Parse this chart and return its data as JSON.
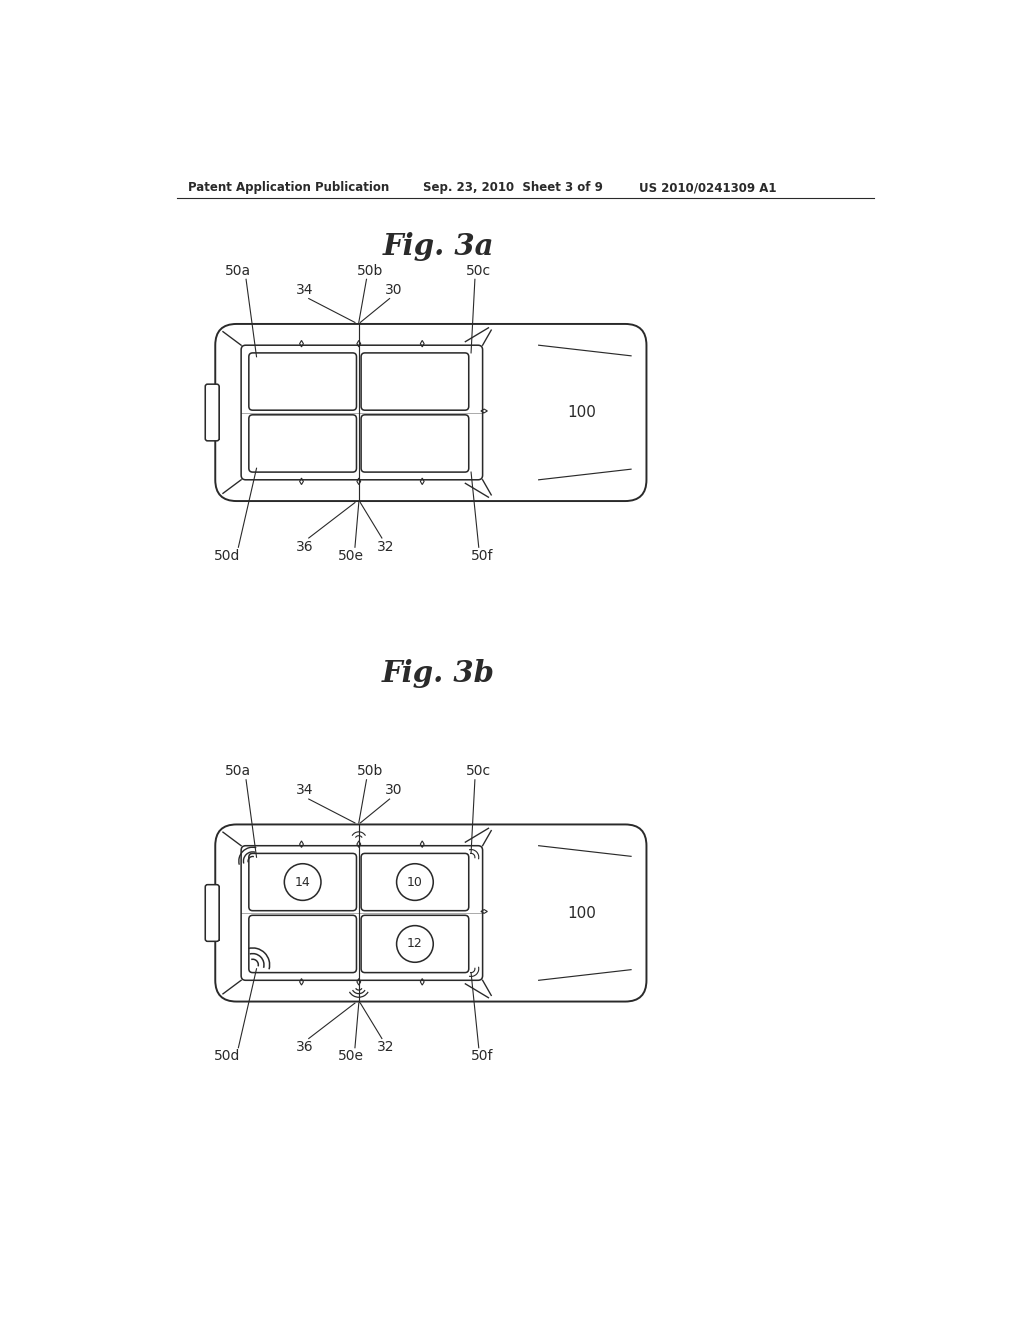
{
  "bg_color": "#ffffff",
  "header_left": "Patent Application Publication",
  "header_center": "Sep. 23, 2010  Sheet 3 of 9",
  "header_right": "US 2010/0241309 A1",
  "fig3a_title": "Fig. 3a",
  "fig3b_title": "Fig. 3b",
  "line_color": "#2a2a2a",
  "label_color": "#1a1a1a",
  "lw_main": 1.4,
  "lw_thin": 0.8,
  "lw_interior": 1.0
}
